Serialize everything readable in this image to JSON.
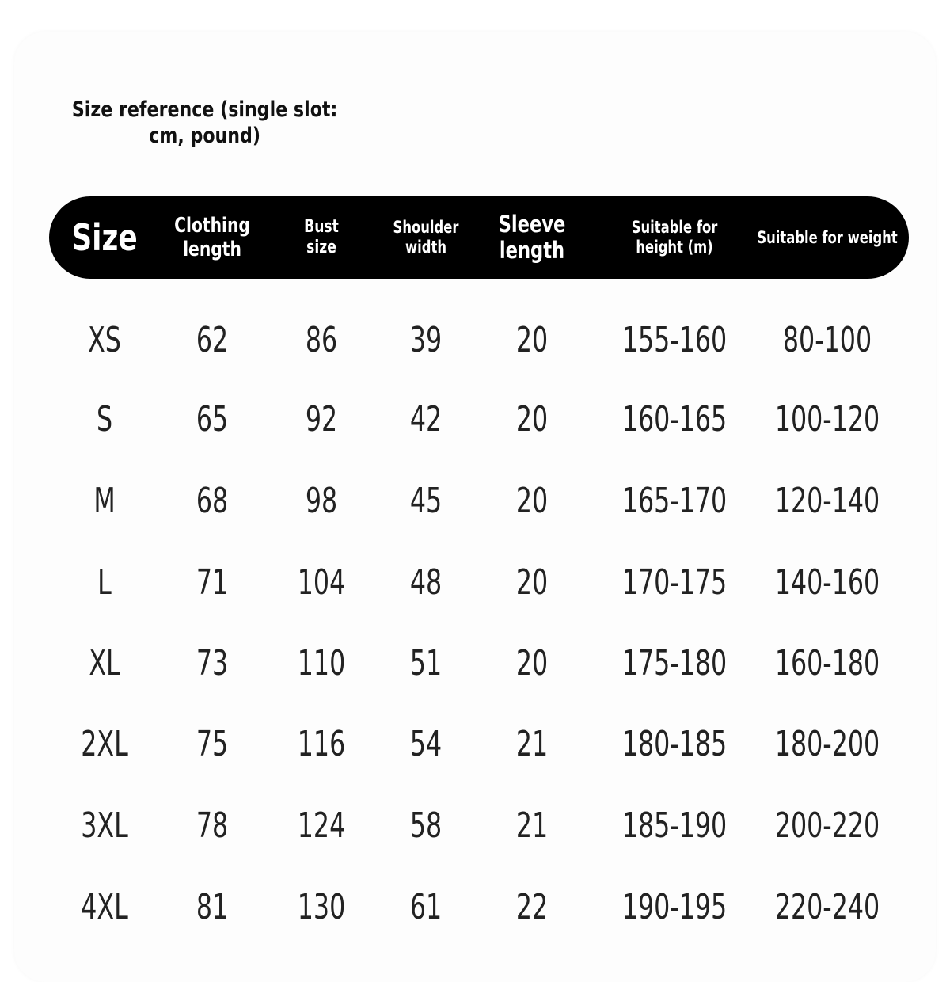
{
  "title": "Size reference (single slot: cm, pound)",
  "columns": [
    "Size",
    "Clothing length",
    "Bust size",
    "Shoulder width",
    "Sleeve length",
    "Suitable for height (m)",
    "Suitable for weight"
  ],
  "rows": [
    [
      "XS",
      "62",
      "86",
      "39",
      "20",
      "155-160",
      "80-100"
    ],
    [
      "S",
      "65",
      "92",
      "42",
      "20",
      "160-165",
      "100-120"
    ],
    [
      "M",
      "68",
      "98",
      "45",
      "20",
      "165-170",
      "120-140"
    ],
    [
      "L",
      "71",
      "104",
      "48",
      "20",
      "170-175",
      "140-160"
    ],
    [
      "XL",
      "73",
      "110",
      "51",
      "20",
      "175-180",
      "160-180"
    ],
    [
      "2XL",
      "75",
      "116",
      "54",
      "21",
      "180-185",
      "180-200"
    ],
    [
      "3XL",
      "78",
      "124",
      "58",
      "21",
      "185-190",
      "200-220"
    ],
    [
      "4XL",
      "81",
      "130",
      "61",
      "22",
      "190-195",
      "220-240"
    ]
  ],
  "colors": {
    "header_bg": "#000000",
    "header_text": "#ffffff",
    "body_text": "#222222"
  }
}
